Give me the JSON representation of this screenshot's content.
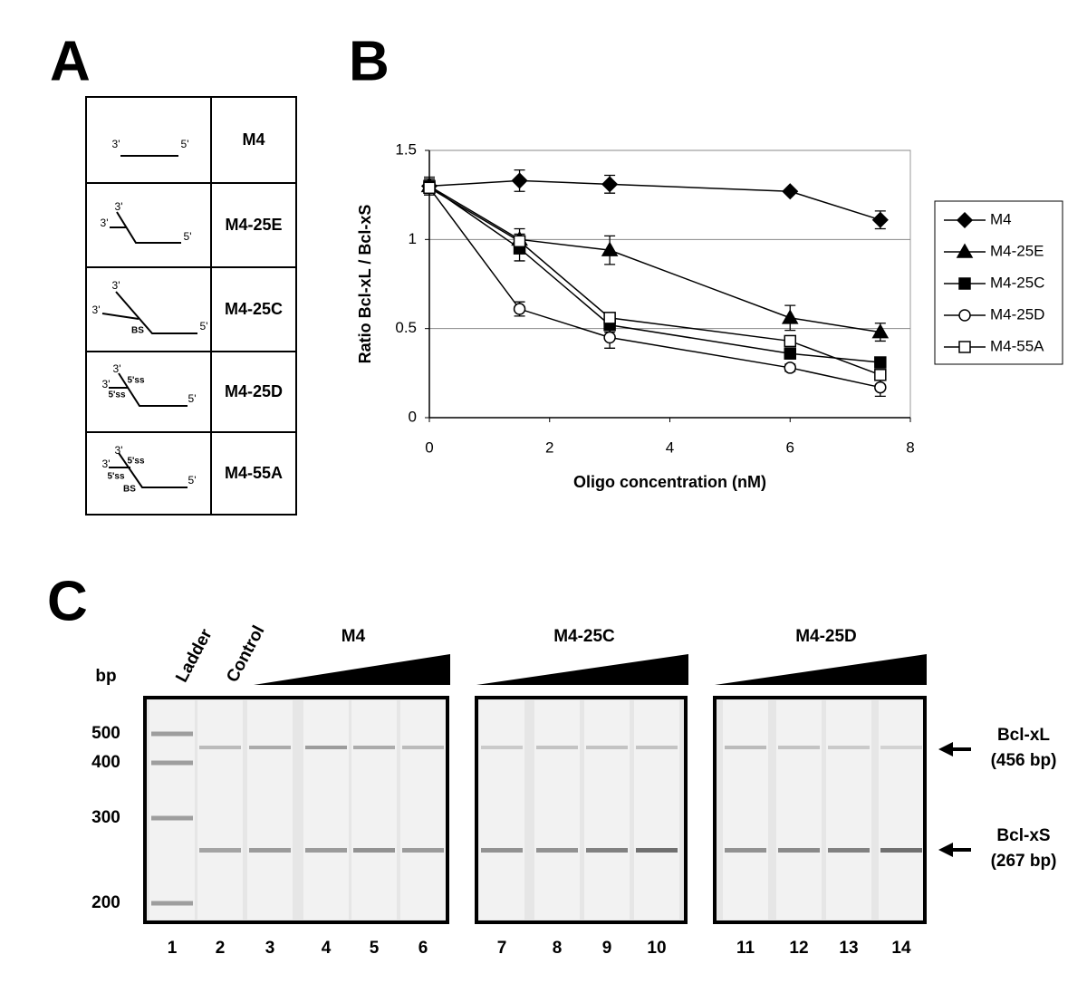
{
  "panel_labels": [
    "A",
    "B",
    "C"
  ],
  "table": {
    "rows": [
      {
        "name": "M4",
        "ends": [
          "3'",
          "5'"
        ],
        "sites": []
      },
      {
        "name": "M4-25E",
        "ends": [
          "3'",
          "3'",
          "5'"
        ],
        "sites": []
      },
      {
        "name": "M4-25C",
        "ends": [
          "3'",
          "3'",
          "5'"
        ],
        "sites": [
          "BS"
        ]
      },
      {
        "name": "M4-25D",
        "ends": [
          "3'",
          "3'",
          "5'"
        ],
        "sites": [
          "5'ss",
          "5'ss"
        ]
      },
      {
        "name": "M4-55A",
        "ends": [
          "3'",
          "3'",
          "5'"
        ],
        "sites": [
          "5'ss",
          "5'ss",
          "BS"
        ]
      }
    ]
  },
  "chart_data": {
    "type": "line",
    "x_label": "Oligo concentration (nM)",
    "y_label": "Ratio Bcl-xL / Bcl-xS",
    "x": [
      0,
      1.5,
      3,
      6,
      7.5
    ],
    "xlim": [
      0,
      8
    ],
    "xticks": [
      0,
      2,
      4,
      6,
      8
    ],
    "ylim": [
      0,
      1.5
    ],
    "yticks": [
      0,
      0.5,
      1,
      1.5
    ],
    "grid": true,
    "legend": "right",
    "series": [
      {
        "name": "M4",
        "color": "#000000",
        "marker": "diamond",
        "filled": true,
        "values": [
          1.3,
          1.33,
          1.31,
          1.27,
          1.11
        ],
        "errors": [
          0.05,
          0.06,
          0.05,
          0,
          0.05
        ]
      },
      {
        "name": "M4-25E",
        "color": "#000000",
        "marker": "triangle",
        "filled": true,
        "values": [
          1.3,
          1.0,
          0.94,
          0.56,
          0.48
        ],
        "errors": [
          0.04,
          0.06,
          0.08,
          0.07,
          0.05
        ]
      },
      {
        "name": "M4-25C",
        "color": "#000000",
        "marker": "square",
        "filled": true,
        "values": [
          1.3,
          0.95,
          0.52,
          0.36,
          0.31
        ],
        "errors": [
          0.03,
          0.07,
          0.04,
          0.03,
          0.03
        ]
      },
      {
        "name": "M4-25D",
        "color": "#000000",
        "marker": "circle",
        "filled": false,
        "values": [
          1.29,
          0.61,
          0.45,
          0.28,
          0.17
        ],
        "errors": [
          0.03,
          0.04,
          0.06,
          0.02,
          0.05
        ]
      },
      {
        "name": "M4-55A",
        "color": "#000000",
        "marker": "square",
        "filled": false,
        "values": [
          1.29,
          0.99,
          0.56,
          0.43,
          0.24
        ],
        "errors": [
          0.03,
          0.04,
          0.03,
          0.02,
          0.03
        ]
      }
    ]
  },
  "gel": {
    "bp_label": "bp",
    "bp_markers": [
      500,
      400,
      300,
      200
    ],
    "lane_headers": [
      "Ladder",
      "Control"
    ],
    "groups": [
      "M4",
      "M4-25C",
      "M4-25D"
    ],
    "lane_numbers": [
      1,
      2,
      3,
      4,
      5,
      6,
      7,
      8,
      9,
      10,
      11,
      12,
      13,
      14
    ],
    "bands": [
      {
        "name": "Bcl-xL",
        "size": "(456 bp)"
      },
      {
        "name": "Bcl-xS",
        "size": "(267 bp)"
      }
    ]
  }
}
